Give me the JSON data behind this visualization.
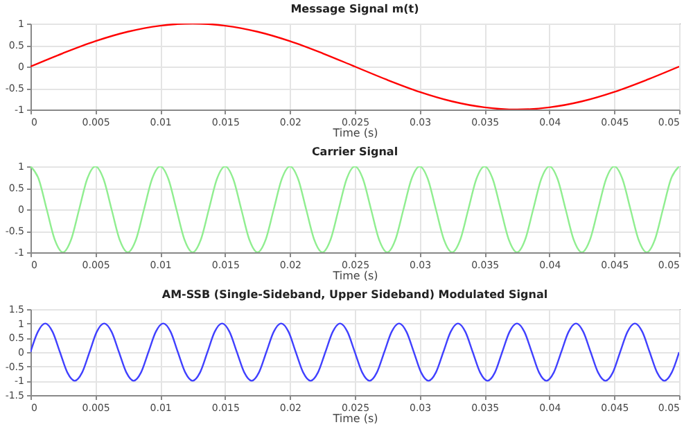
{
  "chart_data": [
    {
      "type": "line",
      "title": "Message Signal m(t)",
      "xlabel": "Time (s)",
      "grid": true,
      "xlim": [
        0,
        0.05
      ],
      "xticks": [
        0,
        0.005,
        0.01,
        0.015,
        0.02,
        0.025,
        0.03,
        0.035,
        0.04,
        0.045,
        0.05
      ],
      "ylim": [
        -1,
        1
      ],
      "yticks": [
        -1,
        -0.5,
        0,
        0.5,
        1
      ],
      "x": [
        0,
        0.0025,
        0.005,
        0.0075,
        0.01,
        0.0125,
        0.015,
        0.0175,
        0.02,
        0.0225,
        0.025,
        0.0275,
        0.03,
        0.0325,
        0.035,
        0.0375,
        0.04,
        0.0425,
        0.045,
        0.0475,
        0.05
      ],
      "series": [
        {
          "color": "#ff0000",
          "values": [
            0,
            0.31,
            0.59,
            0.81,
            0.95,
            1,
            0.95,
            0.81,
            0.59,
            0.31,
            0,
            -0.31,
            -0.59,
            -0.81,
            -0.95,
            -1,
            -0.95,
            -0.81,
            -0.59,
            -0.31,
            0
          ]
        }
      ]
    },
    {
      "type": "line",
      "title": "Carrier Signal",
      "xlabel": "Time (s)",
      "grid": true,
      "xlim": [
        0,
        0.05
      ],
      "xticks": [
        0,
        0.005,
        0.01,
        0.015,
        0.02,
        0.025,
        0.03,
        0.035,
        0.04,
        0.045,
        0.05
      ],
      "ylim": [
        -1,
        1
      ],
      "yticks": [
        -1,
        -0.5,
        0,
        0.5,
        1
      ],
      "x": [
        0,
        0.000625,
        0.00125,
        0.001875,
        0.0025,
        0.003125,
        0.00375,
        0.004375,
        0.005,
        0.005625,
        0.00625,
        0.006875,
        0.0075,
        0.008125,
        0.00875,
        0.009375,
        0.01,
        0.010625,
        0.01125,
        0.011875,
        0.0125,
        0.013125,
        0.01375,
        0.014375,
        0.015,
        0.015625,
        0.01625,
        0.016875,
        0.0175,
        0.018125,
        0.01875,
        0.019375,
        0.02,
        0.020625,
        0.02125,
        0.021875,
        0.0225,
        0.023125,
        0.02375,
        0.024375,
        0.025,
        0.025625,
        0.02625,
        0.026875,
        0.0275,
        0.028125,
        0.02875,
        0.029375,
        0.03,
        0.030625,
        0.03125,
        0.031875,
        0.0325,
        0.033125,
        0.03375,
        0.034375,
        0.035,
        0.035625,
        0.03625,
        0.036875,
        0.0375,
        0.038125,
        0.03875,
        0.039375,
        0.04,
        0.040625,
        0.04125,
        0.041875,
        0.0425,
        0.043125,
        0.04375,
        0.044375,
        0.045,
        0.045625,
        0.04625,
        0.046875,
        0.0475,
        0.048125,
        0.04875,
        0.049375,
        0.05
      ],
      "series": [
        {
          "color": "#90ee90",
          "values": [
            1,
            0.71,
            0,
            -0.71,
            -1,
            -0.71,
            0,
            0.71,
            1,
            0.71,
            0,
            -0.71,
            -1,
            -0.71,
            0,
            0.71,
            1,
            0.71,
            0,
            -0.71,
            -1,
            -0.71,
            0,
            0.71,
            1,
            0.71,
            0,
            -0.71,
            -1,
            -0.71,
            0,
            0.71,
            1,
            0.71,
            0,
            -0.71,
            -1,
            -0.71,
            0,
            0.71,
            1,
            0.71,
            0,
            -0.71,
            -1,
            -0.71,
            0,
            0.71,
            1,
            0.71,
            0,
            -0.71,
            -1,
            -0.71,
            0,
            0.71,
            1,
            0.71,
            0,
            -0.71,
            -1,
            -0.71,
            0,
            0.71,
            1,
            0.71,
            0,
            -0.71,
            -1,
            -0.71,
            0,
            0.71,
            1,
            0.71,
            0,
            -0.71,
            -1,
            -0.71,
            0,
            0.71,
            1
          ]
        }
      ]
    },
    {
      "type": "line",
      "title": "AM-SSB (Single-Sideband, Upper Sideband) Modulated Signal",
      "xlabel": "Time (s)",
      "grid": true,
      "xlim": [
        0,
        0.05
      ],
      "xticks": [
        0,
        0.005,
        0.01,
        0.015,
        0.02,
        0.025,
        0.03,
        0.035,
        0.04,
        0.045,
        0.05
      ],
      "ylim": [
        -1.5,
        1.5
      ],
      "yticks": [
        -1.5,
        -1,
        -0.5,
        0,
        0.5,
        1,
        1.5
      ],
      "x": [
        0,
        0.00057,
        0.00114,
        0.0017,
        0.00227,
        0.00284,
        0.00341,
        0.00398,
        0.00455,
        0.00511,
        0.00568,
        0.00625,
        0.00682,
        0.00739,
        0.00795,
        0.00852,
        0.00909,
        0.00966,
        0.01023,
        0.0108,
        0.01136,
        0.01193,
        0.0125,
        0.01307,
        0.01364,
        0.0142,
        0.01477,
        0.01534,
        0.01591,
        0.01648,
        0.01705,
        0.01761,
        0.01818,
        0.01875,
        0.01932,
        0.01989,
        0.02045,
        0.02102,
        0.02159,
        0.02216,
        0.02273,
        0.0233,
        0.02386,
        0.02443,
        0.025,
        0.02557,
        0.02614,
        0.0267,
        0.02727,
        0.02784,
        0.02841,
        0.02898,
        0.02955,
        0.03011,
        0.03068,
        0.03125,
        0.03182,
        0.03239,
        0.03295,
        0.03352,
        0.03409,
        0.03466,
        0.03523,
        0.0358,
        0.03636,
        0.03693,
        0.0375,
        0.03807,
        0.03864,
        0.0392,
        0.03977,
        0.04034,
        0.04091,
        0.04148,
        0.04205,
        0.04261,
        0.04318,
        0.04375,
        0.04432,
        0.04489,
        0.04545,
        0.04602,
        0.04659,
        0.04716,
        0.04773,
        0.0483,
        0.04886,
        0.04943,
        0.05
      ],
      "series": [
        {
          "color": "#4040ff",
          "values": [
            0,
            0.71,
            1,
            0.71,
            0,
            -0.71,
            -1,
            -0.71,
            0,
            0.71,
            1,
            0.71,
            0,
            -0.71,
            -1,
            -0.71,
            0,
            0.71,
            1,
            0.71,
            0,
            -0.71,
            -1,
            -0.71,
            0,
            0.71,
            1,
            0.71,
            0,
            -0.71,
            -1,
            -0.71,
            0,
            0.71,
            1,
            0.71,
            0,
            -0.71,
            -1,
            -0.71,
            0,
            0.71,
            1,
            0.71,
            0,
            -0.71,
            -1,
            -0.71,
            0,
            0.71,
            1,
            0.71,
            0,
            -0.71,
            -1,
            -0.71,
            0,
            0.71,
            1,
            0.71,
            0,
            -0.71,
            -1,
            -0.71,
            0,
            0.71,
            1,
            0.71,
            0,
            -0.71,
            -1,
            -0.71,
            0,
            0.71,
            1,
            0.71,
            0,
            -0.71,
            -1,
            -0.71,
            0,
            0.71,
            1,
            0.71,
            0,
            -0.71,
            -1,
            -0.71,
            0
          ]
        }
      ]
    }
  ]
}
